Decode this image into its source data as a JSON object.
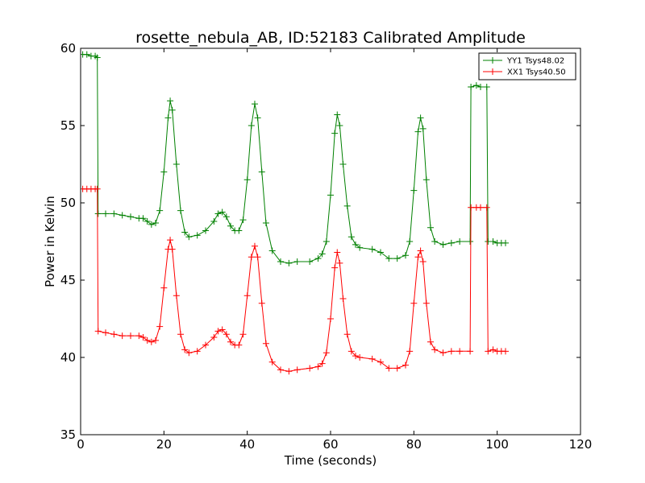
{
  "chart_data": {
    "type": "line",
    "title": "rosette_nebula_AB, ID:52183 Calibrated Amplitude",
    "xlabel": "Time (seconds)",
    "ylabel": "Power in Kelvin",
    "xlim": [
      0,
      120
    ],
    "ylim": [
      35,
      60
    ],
    "xticks": [
      0,
      20,
      40,
      60,
      80,
      100,
      120
    ],
    "yticks": [
      35,
      40,
      45,
      50,
      55,
      60
    ],
    "xtick_labels": [
      "0",
      "20",
      "40",
      "60",
      "80",
      "100",
      "120"
    ],
    "ytick_labels": [
      "35",
      "40",
      "45",
      "50",
      "55",
      "60"
    ],
    "grid": false,
    "legend_position": "top-right",
    "marker": "+",
    "series": [
      {
        "name": "YY1 Tsys48.02",
        "color": "#008000",
        "points": [
          [
            0.5,
            59.6
          ],
          [
            1.5,
            59.6
          ],
          [
            2.5,
            59.5
          ],
          [
            3.5,
            59.5
          ],
          [
            4,
            59.4
          ],
          [
            4.2,
            49.3
          ],
          [
            6,
            49.3
          ],
          [
            8,
            49.3
          ],
          [
            10,
            49.2
          ],
          [
            12,
            49.1
          ],
          [
            14,
            49.0
          ],
          [
            15,
            49.0
          ],
          [
            16,
            48.8
          ],
          [
            17,
            48.6
          ],
          [
            18,
            48.7
          ],
          [
            19,
            49.5
          ],
          [
            20,
            52.0
          ],
          [
            21,
            55.5
          ],
          [
            21.5,
            56.6
          ],
          [
            22,
            56.0
          ],
          [
            23,
            52.5
          ],
          [
            24,
            49.5
          ],
          [
            25,
            48.1
          ],
          [
            26,
            47.8
          ],
          [
            28,
            47.9
          ],
          [
            30,
            48.2
          ],
          [
            32,
            48.8
          ],
          [
            33,
            49.3
          ],
          [
            34,
            49.4
          ],
          [
            35,
            49.1
          ],
          [
            36,
            48.5
          ],
          [
            37,
            48.2
          ],
          [
            38,
            48.2
          ],
          [
            39,
            48.9
          ],
          [
            40,
            51.5
          ],
          [
            41,
            55.0
          ],
          [
            41.8,
            56.4
          ],
          [
            42.5,
            55.5
          ],
          [
            43.5,
            52.0
          ],
          [
            44.5,
            48.7
          ],
          [
            46,
            46.9
          ],
          [
            48,
            46.2
          ],
          [
            50,
            46.1
          ],
          [
            52,
            46.2
          ],
          [
            55,
            46.2
          ],
          [
            57,
            46.4
          ],
          [
            58,
            46.7
          ],
          [
            59,
            47.5
          ],
          [
            60,
            50.5
          ],
          [
            61,
            54.5
          ],
          [
            61.6,
            55.7
          ],
          [
            62.2,
            55.0
          ],
          [
            63,
            52.5
          ],
          [
            64,
            49.8
          ],
          [
            65,
            47.8
          ],
          [
            66,
            47.3
          ],
          [
            67,
            47.1
          ],
          [
            70,
            47.0
          ],
          [
            72,
            46.8
          ],
          [
            74,
            46.4
          ],
          [
            76,
            46.4
          ],
          [
            78,
            46.6
          ],
          [
            79,
            47.5
          ],
          [
            80,
            50.8
          ],
          [
            81,
            54.6
          ],
          [
            81.6,
            55.5
          ],
          [
            82.2,
            54.8
          ],
          [
            83,
            51.5
          ],
          [
            84,
            48.4
          ],
          [
            85,
            47.5
          ],
          [
            87,
            47.3
          ],
          [
            89,
            47.4
          ],
          [
            91,
            47.5
          ],
          [
            93.5,
            47.5
          ],
          [
            93.7,
            57.5
          ],
          [
            95,
            57.6
          ],
          [
            96,
            57.5
          ],
          [
            97.5,
            57.5
          ],
          [
            97.8,
            47.5
          ],
          [
            99,
            47.5
          ],
          [
            100,
            47.4
          ],
          [
            101,
            47.4
          ],
          [
            102,
            47.4
          ]
        ]
      },
      {
        "name": "XX1 Tsys40.50",
        "color": "#ff0000",
        "points": [
          [
            0.5,
            50.9
          ],
          [
            1.5,
            50.9
          ],
          [
            2.5,
            50.9
          ],
          [
            3.5,
            50.9
          ],
          [
            4,
            50.9
          ],
          [
            4.2,
            41.7
          ],
          [
            6,
            41.6
          ],
          [
            8,
            41.5
          ],
          [
            10,
            41.4
          ],
          [
            12,
            41.4
          ],
          [
            14,
            41.4
          ],
          [
            15,
            41.3
          ],
          [
            16,
            41.1
          ],
          [
            17,
            41.0
          ],
          [
            18,
            41.1
          ],
          [
            19,
            42.0
          ],
          [
            20,
            44.5
          ],
          [
            21,
            47.0
          ],
          [
            21.5,
            47.6
          ],
          [
            22,
            47.0
          ],
          [
            23,
            44.0
          ],
          [
            24,
            41.5
          ],
          [
            25,
            40.5
          ],
          [
            26,
            40.3
          ],
          [
            28,
            40.4
          ],
          [
            30,
            40.8
          ],
          [
            32,
            41.3
          ],
          [
            33,
            41.7
          ],
          [
            34,
            41.8
          ],
          [
            35,
            41.5
          ],
          [
            36,
            41.0
          ],
          [
            37,
            40.8
          ],
          [
            38,
            40.8
          ],
          [
            39,
            41.5
          ],
          [
            40,
            44.0
          ],
          [
            41,
            46.5
          ],
          [
            41.8,
            47.2
          ],
          [
            42.5,
            46.5
          ],
          [
            43.5,
            43.5
          ],
          [
            44.5,
            40.9
          ],
          [
            46,
            39.7
          ],
          [
            48,
            39.2
          ],
          [
            50,
            39.1
          ],
          [
            52,
            39.2
          ],
          [
            55,
            39.3
          ],
          [
            57,
            39.4
          ],
          [
            58,
            39.6
          ],
          [
            59,
            40.3
          ],
          [
            60,
            42.5
          ],
          [
            61,
            45.8
          ],
          [
            61.6,
            46.8
          ],
          [
            62.2,
            46.1
          ],
          [
            63,
            43.8
          ],
          [
            64,
            41.5
          ],
          [
            65,
            40.4
          ],
          [
            66,
            40.1
          ],
          [
            67,
            40.0
          ],
          [
            70,
            39.9
          ],
          [
            72,
            39.7
          ],
          [
            74,
            39.3
          ],
          [
            76,
            39.3
          ],
          [
            78,
            39.5
          ],
          [
            79,
            40.4
          ],
          [
            80,
            43.5
          ],
          [
            81,
            46.5
          ],
          [
            81.6,
            46.9
          ],
          [
            82.2,
            46.2
          ],
          [
            83,
            43.5
          ],
          [
            84,
            41.0
          ],
          [
            85,
            40.5
          ],
          [
            87,
            40.3
          ],
          [
            89,
            40.4
          ],
          [
            91,
            40.4
          ],
          [
            93.5,
            40.4
          ],
          [
            93.7,
            49.7
          ],
          [
            95,
            49.7
          ],
          [
            96,
            49.7
          ],
          [
            97.5,
            49.7
          ],
          [
            97.8,
            40.4
          ],
          [
            99,
            40.5
          ],
          [
            100,
            40.4
          ],
          [
            101,
            40.4
          ],
          [
            102,
            40.4
          ]
        ]
      }
    ]
  }
}
